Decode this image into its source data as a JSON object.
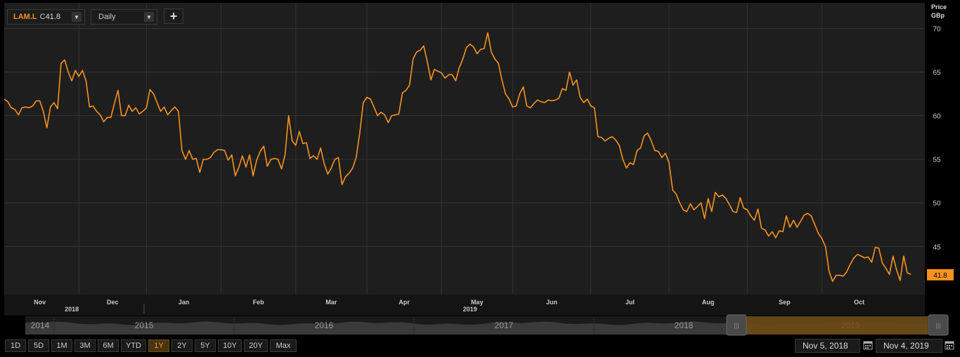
{
  "toolbar": {
    "symbol": "LAM.L",
    "close_label": "C",
    "close_value": "41.8",
    "interval": "Daily",
    "add_label": "+"
  },
  "axis": {
    "title_line1": "Price",
    "title_line2": "GBp",
    "last_price_label": "41.8"
  },
  "range_buttons": [
    "1D",
    "5D",
    "1M",
    "3M",
    "6M",
    "YTD",
    "1Y",
    "2Y",
    "5Y",
    "10Y",
    "20Y",
    "Max"
  ],
  "active_range": "1Y",
  "navigator": {
    "years": [
      "2014",
      "2015",
      "2016",
      "2017",
      "2018",
      "2019"
    ],
    "selected_year": "2019"
  },
  "date_range": {
    "start": "Nov 5, 2018",
    "end": "Nov 4, 2019"
  },
  "colors": {
    "line": "#f7931e",
    "background": "#1e1e1e",
    "grid": "#333333"
  },
  "chart_data": {
    "type": "line",
    "ylim": [
      41,
      71
    ],
    "y_ticks": [
      45,
      50,
      55,
      60,
      65,
      70
    ],
    "x_tick_labels": [
      "Nov",
      "Dec",
      "Jan",
      "Feb",
      "Mar",
      "Apr",
      "May",
      "Jun",
      "Jul",
      "Aug",
      "Sep",
      "Oct"
    ],
    "year_labels": [
      "2018",
      "2019"
    ],
    "series": [
      {
        "values": [
          61.9,
          61.6,
          60.9,
          60.7,
          60.1,
          60.9,
          61.0,
          60.9,
          61.1,
          61.7,
          61.7,
          60.5,
          58.6,
          61.0,
          61.5,
          60.8,
          66.0,
          66.4,
          65.0,
          64.0,
          65.2,
          64.5,
          65.2,
          64.0,
          61.0,
          61.1,
          60.5,
          60.1,
          59.3,
          59.8,
          59.8,
          61.4,
          62.9,
          60.0,
          60.0,
          61.2,
          60.5,
          60.9,
          60.2,
          60.5,
          60.9,
          63.0,
          62.5,
          61.5,
          60.5,
          61.0,
          60.1,
          60.6,
          61.0,
          60.5,
          56.0,
          55.0,
          56.0,
          55.0,
          55.1,
          53.5,
          55.0,
          55.0,
          55.2,
          55.8,
          56.1,
          56.1,
          56.0,
          54.9,
          55.5,
          53.1,
          54.1,
          55.4,
          54.1,
          55.5,
          53.1,
          54.9,
          55.9,
          56.5,
          54.2,
          55.0,
          55.1,
          55.0,
          53.9,
          55.5,
          60.0,
          57.1,
          56.6,
          58.2,
          56.8,
          56.9,
          55.1,
          55.4,
          55.0,
          56.3,
          54.5,
          53.3,
          54.0,
          55.0,
          55.2,
          52.1,
          53.0,
          53.4,
          54.0,
          55.2,
          58.0,
          61.5,
          62.1,
          61.9,
          61.0,
          60.0,
          60.4,
          60.1,
          59.2,
          60.0,
          60.1,
          60.2,
          62.6,
          62.9,
          63.5,
          66.5,
          67.3,
          67.5,
          68.0,
          66.2,
          64.1,
          65.3,
          65.1,
          64.9,
          64.3,
          64.7,
          64.7,
          64.0,
          65.5,
          66.5,
          67.8,
          68.2,
          67.9,
          67.1,
          67.6,
          67.7,
          69.5,
          67.3,
          66.5,
          66.0,
          64.1,
          62.5,
          61.9,
          61.0,
          61.1,
          62.5,
          63.3,
          61.1,
          60.9,
          61.4,
          61.8,
          61.6,
          61.5,
          61.8,
          61.7,
          61.8,
          62.0,
          63.1,
          62.9,
          65.0,
          63.5,
          64.1,
          62.1,
          61.5,
          61.9,
          61.1,
          60.9,
          57.6,
          57.5,
          57.1,
          57.4,
          57.6,
          57.2,
          56.6,
          55.0,
          54.0,
          54.6,
          54.4,
          56.0,
          56.3,
          57.7,
          58.0,
          57.1,
          56.0,
          55.9,
          55.2,
          55.7,
          54.6,
          51.5,
          51.0,
          50.0,
          49.2,
          49.0,
          49.9,
          49.2,
          49.6,
          50.0,
          48.2,
          50.5,
          49.0,
          51.2,
          50.7,
          50.9,
          50.5,
          49.8,
          49.0,
          48.9,
          50.6,
          49.4,
          49.2,
          48.5,
          48.0,
          49.3,
          47.1,
          46.9,
          46.2,
          46.7,
          46.0,
          46.8,
          46.7,
          48.5,
          47.2,
          48.0,
          47.2,
          47.9,
          48.6,
          48.8,
          48.5,
          47.5,
          46.5,
          45.9,
          45.0,
          42.2,
          41.0,
          41.7,
          41.7,
          41.6,
          42.1,
          43.0,
          43.7,
          44.1,
          43.9,
          43.7,
          43.8,
          43.2,
          44.9,
          44.8,
          43.1,
          42.5,
          41.8,
          43.9,
          42.3,
          41.1,
          43.9,
          42.0,
          41.8
        ]
      }
    ]
  }
}
